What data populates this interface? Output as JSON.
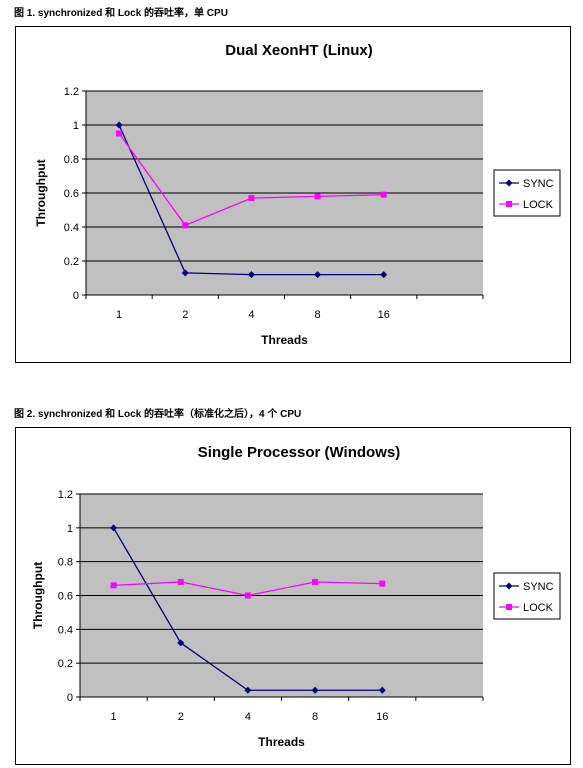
{
  "captions": [
    "图 1. synchronized 和 Lock 的吞吐率，单 CPU",
    "图 2. synchronized 和 Lock 的吞吐率（标准化之后），4 个 CPU"
  ],
  "colors": {
    "sync": "#000080",
    "lock": "#ff00ff",
    "plot_bg": "#c0c0c0"
  },
  "chart_data": [
    {
      "type": "line",
      "title": "Dual XeonHT (Linux)",
      "xlabel": "Threads",
      "ylabel": "Throughput",
      "categories": [
        "1",
        "2",
        "4",
        "8",
        "16"
      ],
      "ylim": [
        0,
        1.2
      ],
      "yticks": [
        "0",
        "0.2",
        "0.4",
        "0.6",
        "0.8",
        "1",
        "1.2"
      ],
      "grid": true,
      "legend_position": "right",
      "series": [
        {
          "name": "SYNC",
          "values": [
            1.0,
            0.13,
            0.12,
            0.12,
            0.12
          ]
        },
        {
          "name": "LOCK",
          "values": [
            0.95,
            0.41,
            0.57,
            0.58,
            0.59
          ]
        }
      ]
    },
    {
      "type": "line",
      "title": "Single Processor (Windows)",
      "xlabel": "Threads",
      "ylabel": "Throughput",
      "categories": [
        "1",
        "2",
        "4",
        "8",
        "16"
      ],
      "ylim": [
        0,
        1.2
      ],
      "yticks": [
        "0",
        "0.2",
        "0.4",
        "0.6",
        "0.8",
        "1",
        "1.2"
      ],
      "grid": true,
      "legend_position": "right",
      "series": [
        {
          "name": "SYNC",
          "values": [
            1.0,
            0.32,
            0.04,
            0.04,
            0.04
          ]
        },
        {
          "name": "LOCK",
          "values": [
            0.66,
            0.68,
            0.6,
            0.68,
            0.67
          ]
        }
      ]
    }
  ]
}
